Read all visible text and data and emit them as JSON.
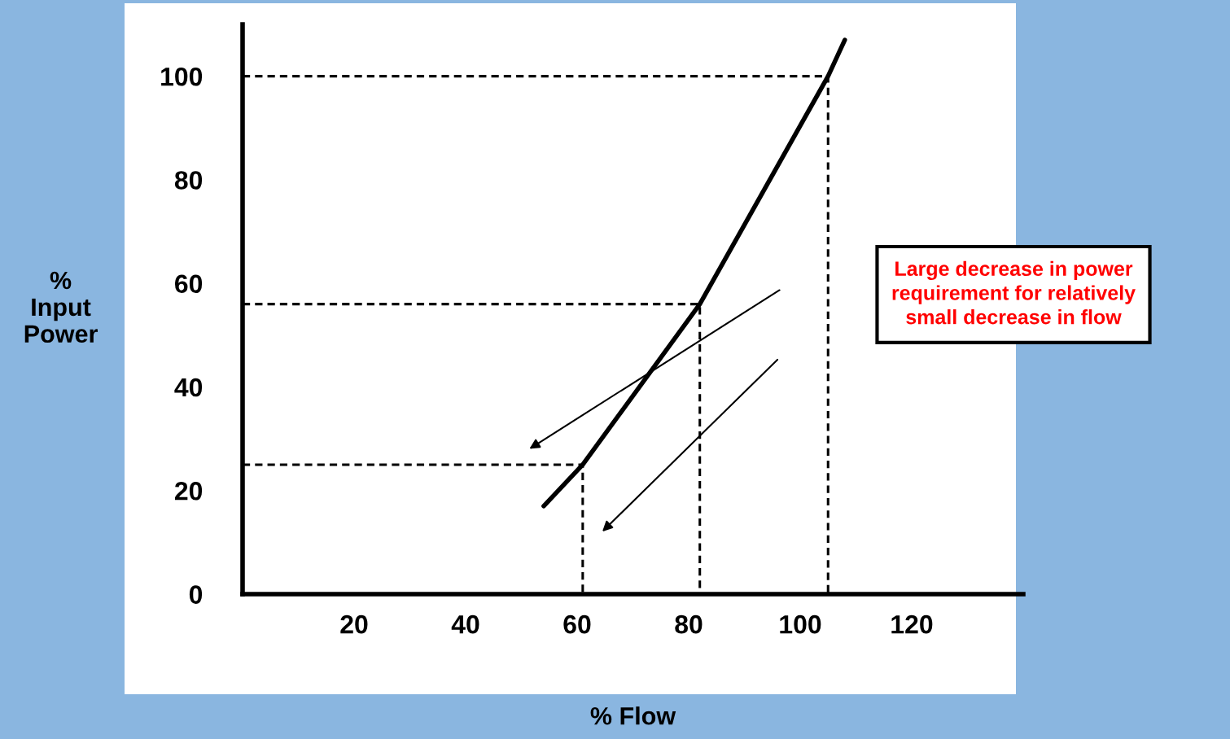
{
  "chart_data": {
    "type": "line",
    "xlabel": "% Flow",
    "ylabel": "%\nInput\nPower",
    "xlim": [
      0,
      140
    ],
    "ylim": [
      0,
      110
    ],
    "xticks": [
      20,
      40,
      60,
      80,
      100,
      120
    ],
    "yticks": [
      0,
      20,
      40,
      60,
      80,
      100
    ],
    "grid": false,
    "series": [
      {
        "color": "#000000",
        "x": [
          54,
          61,
          82,
          105,
          108
        ],
        "values": [
          17,
          25,
          56,
          100,
          107
        ],
        "line_style": "solid"
      },
      {
        "color": "#000000",
        "x": [
          0,
          61,
          61
        ],
        "values": [
          25,
          25,
          0
        ],
        "line_style": "dashed"
      },
      {
        "color": "#000000",
        "x": [
          0,
          82,
          82
        ],
        "values": [
          56,
          56,
          0
        ],
        "line_style": "dashed"
      },
      {
        "color": "#000000",
        "x": [
          0,
          105,
          105
        ],
        "values": [
          100,
          100,
          0
        ],
        "line_style": "dashed"
      }
    ],
    "annotations": [
      "Large decrease in power\nrequirement for relatively\nsmall decrease in flow"
    ]
  }
}
